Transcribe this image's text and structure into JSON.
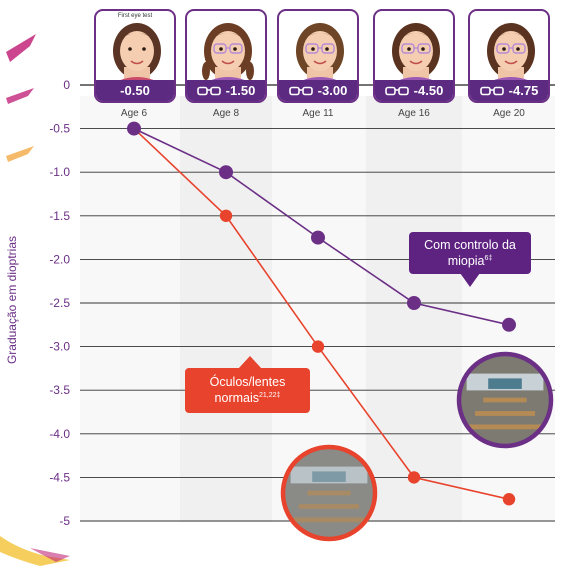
{
  "chart_data": {
    "type": "line",
    "ylabel": "Graduação em dioptrias",
    "ylim": [
      -5,
      0
    ],
    "yticks": [
      "0",
      "-0.5",
      "-1.0",
      "-1.5",
      "-2.0",
      "-2.5",
      "-3.0",
      "-3.5",
      "-4.0",
      "-4.5",
      "-5"
    ],
    "categories": [
      "Age 6",
      "Age 8",
      "Age 11",
      "Age 16",
      "Age 20"
    ],
    "grid": true,
    "series": [
      {
        "name": "Com controlo da miopia",
        "sup": "6‡",
        "color": "#6b2f86",
        "values": [
          -0.5,
          -1.0,
          -1.75,
          -2.5,
          -2.75
        ]
      },
      {
        "name": "Óculos/lentes normais",
        "sup": "21,22‡",
        "color": "#e8432c",
        "values": [
          -0.5,
          -1.5,
          -3.0,
          -4.5,
          -4.75
        ]
      }
    ]
  },
  "header": {
    "first_eye_test": "First eye test",
    "cards": [
      {
        "age": "Age 6",
        "prescription": "-0.50",
        "glasses": false
      },
      {
        "age": "Age 8",
        "prescription": "-1.50",
        "glasses": true
      },
      {
        "age": "Age 11",
        "prescription": "-3.00",
        "glasses": true
      },
      {
        "age": "Age 16",
        "prescription": "-4.50",
        "glasses": true
      },
      {
        "age": "Age 20",
        "prescription": "-4.75",
        "glasses": true
      }
    ]
  },
  "callouts": {
    "myopia_line1": "Com controlo da",
    "myopia_line2": "miopia",
    "myopia_sup": "6‡",
    "normal_line1": "Óculos/lentes",
    "normal_line2": "normais",
    "normal_sup": "21,22‡"
  },
  "colors": {
    "purple": "#6b2f86",
    "red": "#e8432c",
    "band": "#f0f0f0"
  }
}
